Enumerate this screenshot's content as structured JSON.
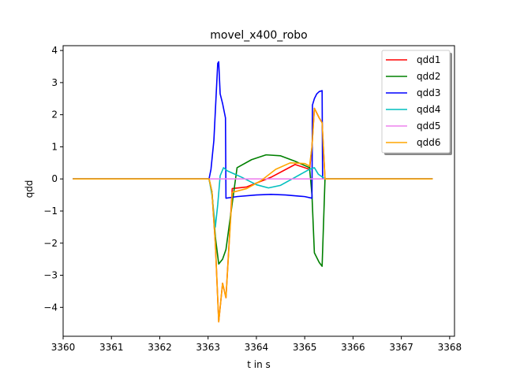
{
  "chart_data": {
    "type": "line",
    "title": "movel_x400_robo",
    "xlabel": "t in s",
    "ylabel": "qdd",
    "xlim": [
      3360.0,
      3368.1
    ],
    "ylim": [
      -4.9,
      4.15
    ],
    "xticks": [
      3360,
      3361,
      3362,
      3363,
      3364,
      3365,
      3366,
      3367,
      3368
    ],
    "yticks": [
      -4,
      -3,
      -2,
      -1,
      0,
      1,
      2,
      3,
      4
    ],
    "ytick_labels": [
      "−4",
      "−3",
      "−2",
      "−1",
      "0",
      "1",
      "2",
      "3",
      "4"
    ],
    "grid": false,
    "legend_position": "upper right",
    "series": [
      {
        "name": "qdd1",
        "color": "#ff0000",
        "x": [
          3360.2,
          3363.02,
          3363.08,
          3363.15,
          3363.22,
          3363.3,
          3363.37,
          3363.5,
          3363.8,
          3364.3,
          3364.8,
          3365.1,
          3365.15,
          3365.2,
          3365.3,
          3365.36,
          3365.42,
          3367.65
        ],
        "y": [
          0,
          0,
          -0.4,
          -2.0,
          -4.45,
          -3.25,
          -3.7,
          -0.3,
          -0.25,
          0.05,
          0.45,
          0.3,
          1.0,
          2.2,
          1.9,
          1.75,
          0,
          0
        ]
      },
      {
        "name": "qdd2",
        "color": "#008000",
        "x": [
          3360.2,
          3363.02,
          3363.08,
          3363.15,
          3363.22,
          3363.3,
          3363.37,
          3363.6,
          3363.9,
          3364.2,
          3364.5,
          3364.8,
          3365.1,
          3365.15,
          3365.2,
          3365.3,
          3365.36,
          3365.42,
          3367.65
        ],
        "y": [
          0,
          0,
          -0.4,
          -1.8,
          -2.65,
          -2.5,
          -2.2,
          0.35,
          0.6,
          0.75,
          0.72,
          0.55,
          0.35,
          -0.5,
          -2.3,
          -2.6,
          -2.72,
          0,
          0
        ]
      },
      {
        "name": "qdd3",
        "color": "#0000ff",
        "x": [
          3360.2,
          3363.02,
          3363.06,
          3363.12,
          3363.17,
          3363.2,
          3363.22,
          3363.25,
          3363.3,
          3363.36,
          3363.37,
          3363.6,
          3364.0,
          3364.3,
          3364.6,
          3365.0,
          3365.15,
          3365.16,
          3365.2,
          3365.25,
          3365.3,
          3365.36,
          3365.37,
          3367.65
        ],
        "y": [
          0,
          0,
          0.3,
          1.2,
          2.7,
          3.6,
          3.65,
          2.65,
          2.35,
          1.9,
          -0.6,
          -0.55,
          -0.5,
          -0.48,
          -0.5,
          -0.55,
          -0.6,
          2.3,
          2.5,
          2.65,
          2.72,
          2.75,
          0,
          0
        ]
      },
      {
        "name": "qdd4",
        "color": "#00bfbf",
        "x": [
          3360.2,
          3363.02,
          3363.08,
          3363.15,
          3363.2,
          3363.25,
          3363.32,
          3363.4,
          3363.7,
          3364.0,
          3364.25,
          3364.5,
          3364.8,
          3365.1,
          3365.2,
          3365.28,
          3365.42,
          3367.65
        ],
        "y": [
          0,
          0,
          -0.5,
          -1.5,
          -0.8,
          0.1,
          0.35,
          0.25,
          0.05,
          -0.18,
          -0.28,
          -0.2,
          0.05,
          0.3,
          0.35,
          0.15,
          0,
          0
        ]
      },
      {
        "name": "qdd5",
        "color": "#ee82ee",
        "x": [
          3360.2,
          3367.65
        ],
        "y": [
          0,
          0
        ]
      },
      {
        "name": "qdd6",
        "color": "#ffa500",
        "x": [
          3360.2,
          3363.02,
          3363.08,
          3363.15,
          3363.22,
          3363.3,
          3363.37,
          3363.5,
          3363.8,
          3364.1,
          3364.4,
          3364.7,
          3365.0,
          3365.1,
          3365.15,
          3365.2,
          3365.3,
          3365.36,
          3365.42,
          3367.65
        ],
        "y": [
          0,
          0,
          -0.4,
          -2.0,
          -4.45,
          -3.25,
          -3.7,
          -0.42,
          -0.3,
          -0.05,
          0.3,
          0.5,
          0.48,
          0.4,
          1.0,
          2.2,
          1.9,
          1.75,
          0,
          0
        ]
      }
    ]
  }
}
